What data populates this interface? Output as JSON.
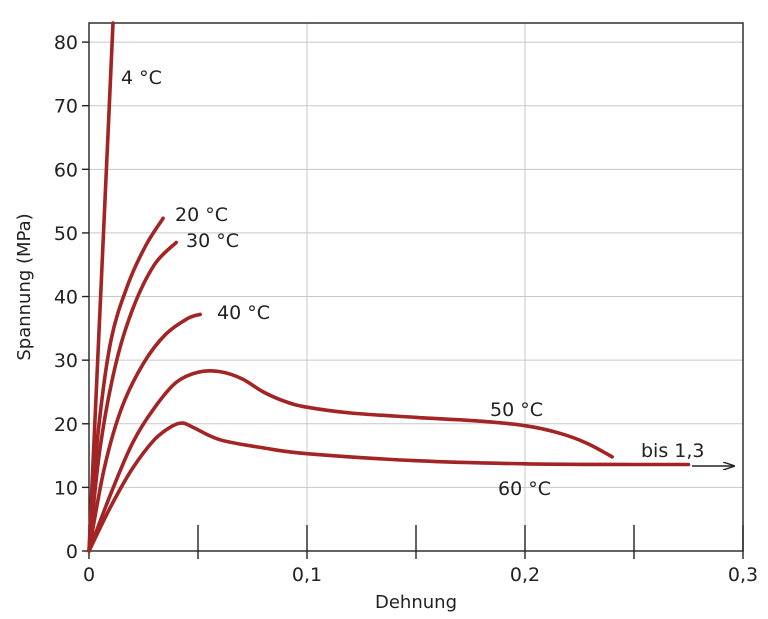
{
  "chart_data": {
    "type": "line",
    "title": "",
    "xlabel": "Dehnung",
    "ylabel": "Spannung (MPa)",
    "xlim": [
      0,
      0.3
    ],
    "ylim": [
      0,
      83
    ],
    "x_ticks": [
      0,
      0.05,
      0.1,
      0.15,
      0.2,
      0.25,
      0.3
    ],
    "x_tick_labels": [
      {
        "value": 0,
        "label": "0"
      },
      {
        "value": 0.1,
        "label": "0,1"
      },
      {
        "value": 0.2,
        "label": "0,2"
      },
      {
        "value": 0.3,
        "label": "0,3"
      }
    ],
    "y_ticks": [
      0,
      10,
      20,
      30,
      40,
      50,
      60,
      70,
      80
    ],
    "y_tick_labels": [
      "0",
      "10",
      "20",
      "30",
      "40",
      "50",
      "60",
      "70",
      "80"
    ],
    "grid": true,
    "line_color": "#a32424",
    "series": [
      {
        "name": "4 °C",
        "points": [
          [
            0,
            0
          ],
          [
            0.004,
            30
          ],
          [
            0.008,
            60
          ],
          [
            0.011,
            83
          ]
        ]
      },
      {
        "name": "20 °C",
        "points": [
          [
            0,
            0
          ],
          [
            0.004,
            18
          ],
          [
            0.01,
            33
          ],
          [
            0.018,
            42
          ],
          [
            0.026,
            48
          ],
          [
            0.034,
            52.3
          ]
        ]
      },
      {
        "name": "30 °C",
        "points": [
          [
            0,
            0
          ],
          [
            0.005,
            16
          ],
          [
            0.012,
            29
          ],
          [
            0.02,
            38
          ],
          [
            0.03,
            45
          ],
          [
            0.04,
            48.5
          ]
        ]
      },
      {
        "name": "40 °C",
        "points": [
          [
            0,
            0
          ],
          [
            0.007,
            13
          ],
          [
            0.015,
            22.5
          ],
          [
            0.025,
            29.5
          ],
          [
            0.035,
            34
          ],
          [
            0.045,
            36.5
          ],
          [
            0.051,
            37.2
          ]
        ]
      },
      {
        "name": "50 °C",
        "points": [
          [
            0,
            0
          ],
          [
            0.01,
            9
          ],
          [
            0.02,
            17
          ],
          [
            0.03,
            22.5
          ],
          [
            0.04,
            26.5
          ],
          [
            0.05,
            28.1
          ],
          [
            0.06,
            28.2
          ],
          [
            0.07,
            27.1
          ],
          [
            0.08,
            25
          ],
          [
            0.09,
            23.5
          ],
          [
            0.1,
            22.6
          ],
          [
            0.12,
            21.7
          ],
          [
            0.15,
            21
          ],
          [
            0.18,
            20.4
          ],
          [
            0.2,
            19.7
          ],
          [
            0.215,
            18.6
          ],
          [
            0.228,
            17
          ],
          [
            0.24,
            14.8
          ]
        ]
      },
      {
        "name": "60 °C",
        "points": [
          [
            0,
            0
          ],
          [
            0.01,
            7
          ],
          [
            0.02,
            13
          ],
          [
            0.03,
            17.5
          ],
          [
            0.038,
            19.6
          ],
          [
            0.043,
            20.1
          ],
          [
            0.048,
            19.4
          ],
          [
            0.06,
            17.5
          ],
          [
            0.08,
            16.2
          ],
          [
            0.1,
            15.3
          ],
          [
            0.15,
            14.2
          ],
          [
            0.2,
            13.7
          ],
          [
            0.25,
            13.6
          ],
          [
            0.275,
            13.6
          ]
        ]
      }
    ],
    "annotations": [
      {
        "text": "4 °C",
        "series": "4 °C"
      },
      {
        "text": "20 °C",
        "series": "20 °C"
      },
      {
        "text": "30 °C",
        "series": "30 °C"
      },
      {
        "text": "40 °C",
        "series": "40 °C"
      },
      {
        "text": "50 °C",
        "series": "50 °C"
      },
      {
        "text": "60 °C",
        "series": "60 °C"
      },
      {
        "text": "bis 1,3",
        "series": "60 °C",
        "arrow": "right"
      }
    ]
  }
}
